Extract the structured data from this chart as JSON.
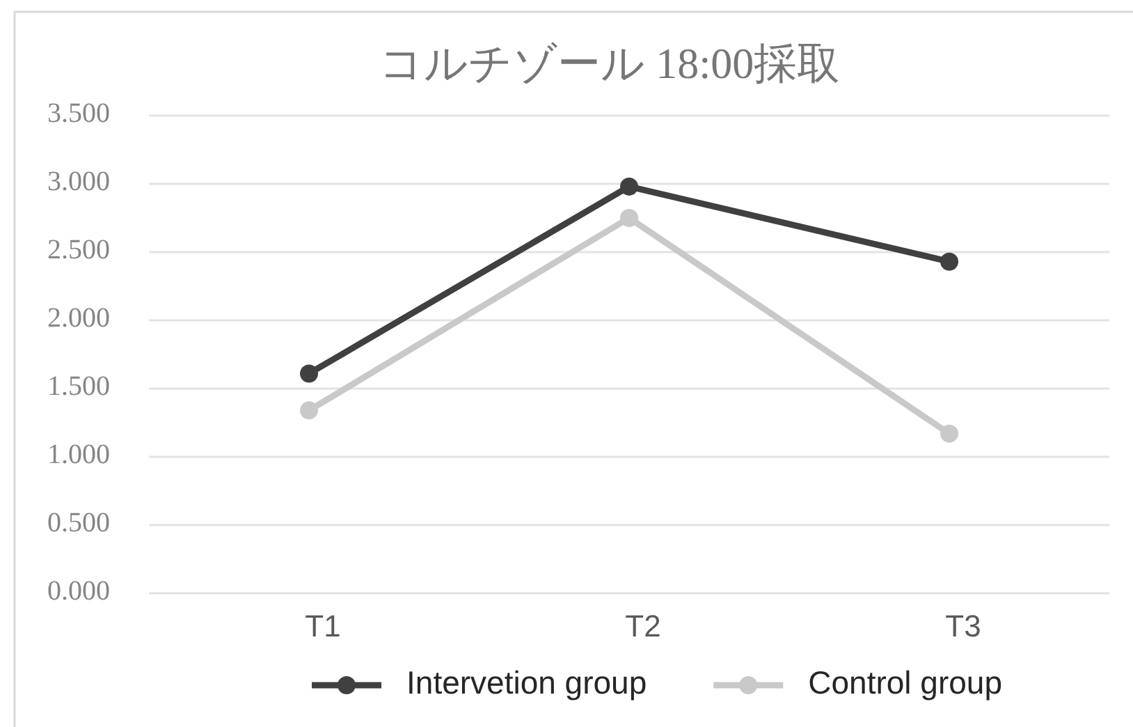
{
  "chart_data": {
    "type": "line",
    "title": "コルチゾール 18:00採取",
    "categories": [
      "T1",
      "T2",
      "T3"
    ],
    "series": [
      {
        "name": "Intervetion group",
        "color": "#404040",
        "values": [
          1.61,
          2.98,
          2.43
        ]
      },
      {
        "name": "Control group",
        "color": "#c9c9c9",
        "values": [
          1.34,
          2.75,
          1.17
        ]
      }
    ],
    "ylim": [
      0,
      3.5
    ],
    "yticks": [
      {
        "value": 0,
        "label": "0.000"
      },
      {
        "value": 0.5,
        "label": "0.500"
      },
      {
        "value": 1,
        "label": "1.000"
      },
      {
        "value": 1.5,
        "label": "1.500"
      },
      {
        "value": 2,
        "label": "2.000"
      },
      {
        "value": 2.5,
        "label": "2.500"
      },
      {
        "value": 3,
        "label": "3.000"
      },
      {
        "value": 3.5,
        "label": "3.500"
      }
    ],
    "grid": "y",
    "legend": "bottom",
    "marker": "circle",
    "line_style": "solid"
  }
}
